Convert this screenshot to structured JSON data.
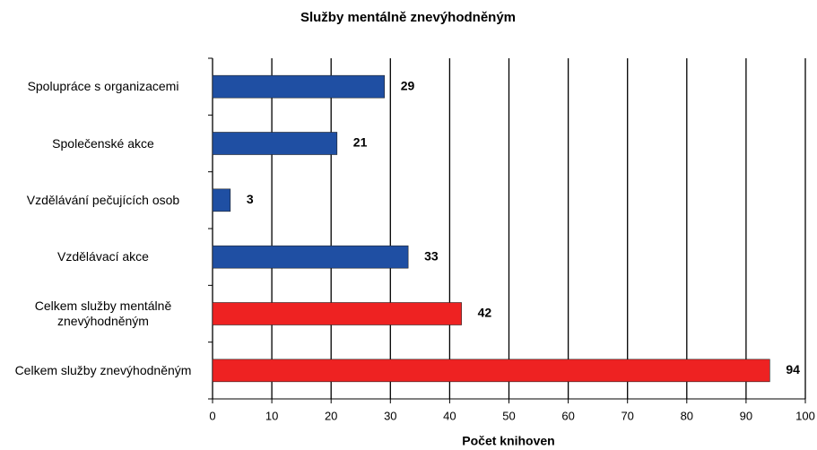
{
  "chart_data": {
    "type": "bar",
    "orientation": "horizontal",
    "title": "Služby mentálně znevýhodněným",
    "xlabel": "Počet knihoven",
    "categories": [
      "Spolupráce s organizacemi",
      "Společenské akce",
      "Vzdělávání pečujících osob",
      "Vzdělávací akce",
      "Celkem služby mentálně znevýhodněným",
      "Celkem služby znevýhodněným"
    ],
    "values": [
      29,
      21,
      3,
      33,
      42,
      94
    ],
    "colors": [
      "#1f4fa3",
      "#1f4fa3",
      "#1f4fa3",
      "#1f4fa3",
      "#ee2222",
      "#ee2222"
    ],
    "xlim": [
      0,
      100
    ],
    "xticks": [
      0,
      10,
      20,
      30,
      40,
      50,
      60,
      70,
      80,
      90,
      100
    ],
    "grid": true
  }
}
